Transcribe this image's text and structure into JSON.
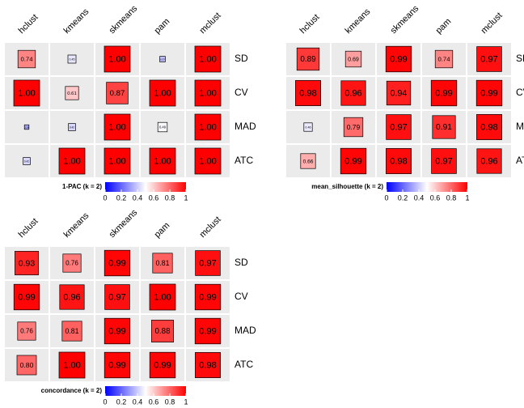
{
  "chart_data": [
    {
      "type": "heatmap",
      "title": "1-PAC (k = 2)",
      "columns": [
        "hclust",
        "kmeans",
        "skmeans",
        "pam",
        "mclust"
      ],
      "rows": [
        "SD",
        "CV",
        "MAD",
        "ATC"
      ],
      "values": [
        [
          0.74,
          0.45,
          1,
          0.37,
          1
        ],
        [
          1,
          0.61,
          0.87,
          1,
          1
        ],
        [
          0.34,
          0.42,
          1,
          0.49,
          1
        ],
        [
          0.42,
          1,
          1,
          1,
          1
        ]
      ],
      "value_labels": [
        [
          "0.74",
          "0.45",
          "1.00",
          "0.37",
          "1.00"
        ],
        [
          "1.00",
          "0.61",
          "0.87",
          "1.00",
          "1.00"
        ],
        [
          "0.34",
          "0.42",
          "1.00",
          "0.49",
          "1.00"
        ],
        [
          "0.42",
          "1.00",
          "1.00",
          "1.00",
          "1.00"
        ]
      ],
      "lim": [
        0,
        1
      ],
      "ticks": [
        0,
        0.2,
        0.4,
        0.6,
        0.8,
        1
      ],
      "colors": [
        "#0000ff",
        "#ffffff",
        "#ff0000"
      ]
    },
    {
      "type": "heatmap",
      "title": "mean_silhouette (k = 2)",
      "columns": [
        "hclust",
        "kmeans",
        "skmeans",
        "pam",
        "mclust"
      ],
      "rows": [
        "SD",
        "CV",
        "MAD",
        "ATC"
      ],
      "values": [
        [
          0.89,
          0.69,
          0.99,
          0.74,
          0.97
        ],
        [
          0.98,
          0.96,
          0.94,
          0.99,
          0.99
        ],
        [
          0.46,
          0.79,
          0.97,
          0.91,
          0.98
        ],
        [
          0.66,
          0.99,
          0.98,
          0.97,
          0.96
        ]
      ],
      "lim": [
        0,
        1
      ],
      "ticks": [
        0,
        0.2,
        0.4,
        0.6,
        0.8,
        1
      ],
      "colors": [
        "#0000ff",
        "#ffffff",
        "#ff0000"
      ]
    },
    {
      "type": "heatmap",
      "title": "concordance (k = 2)",
      "columns": [
        "hclust",
        "kmeans",
        "skmeans",
        "pam",
        "mclust"
      ],
      "rows": [
        "SD",
        "CV",
        "MAD",
        "ATC"
      ],
      "values": [
        [
          0.93,
          0.76,
          0.99,
          0.81,
          0.97
        ],
        [
          0.99,
          0.96,
          0.97,
          1,
          0.99
        ],
        [
          0.76,
          0.81,
          0.99,
          0.88,
          0.99
        ],
        [
          0.8,
          1,
          0.99,
          0.99,
          0.98
        ]
      ],
      "value_labels": [
        [
          "0.93",
          "0.76",
          "0.99",
          "0.81",
          "0.97"
        ],
        [
          "0.99",
          "0.96",
          "0.97",
          "1.00",
          "0.99"
        ],
        [
          "0.76",
          "0.81",
          "0.99",
          "0.88",
          "0.99"
        ],
        [
          "0.80",
          "1.00",
          "0.99",
          "0.99",
          "0.98"
        ]
      ],
      "lim": [
        0,
        1
      ],
      "ticks": [
        0,
        0.2,
        0.4,
        0.6,
        0.8,
        1
      ],
      "colors": [
        "#0000ff",
        "#ffffff",
        "#ff0000"
      ]
    }
  ]
}
